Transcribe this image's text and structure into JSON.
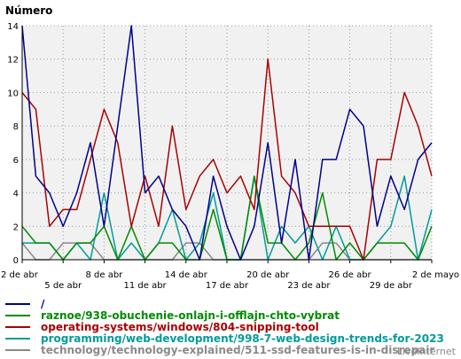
{
  "chart_data": {
    "type": "line",
    "title": "",
    "ylabel": "Número",
    "xlabel": "",
    "ylim": [
      0,
      14
    ],
    "yticks": [
      0,
      2,
      4,
      6,
      8,
      10,
      12,
      14
    ],
    "grid": true,
    "x_count": 31,
    "xtick_labels_row1": [
      {
        "i": 0,
        "label": "2 de abr"
      },
      {
        "i": 6,
        "label": "8 de abr"
      },
      {
        "i": 12,
        "label": "14 de abr"
      },
      {
        "i": 18,
        "label": "20 de abr"
      },
      {
        "i": 24,
        "label": "26 de abr"
      },
      {
        "i": 30,
        "label": "2 de mayo"
      }
    ],
    "xtick_labels_row2": [
      {
        "i": 3,
        "label": "5 de abr"
      },
      {
        "i": 9,
        "label": "11 de abr"
      },
      {
        "i": 15,
        "label": "17 de abr"
      },
      {
        "i": 21,
        "label": "23 de abr"
      },
      {
        "i": 27,
        "label": "29 de abr"
      }
    ],
    "series": [
      {
        "name": "/",
        "color": "#00008b",
        "values": [
          14,
          5,
          4,
          2,
          4,
          7,
          2,
          8,
          14,
          4,
          5,
          3,
          2,
          0,
          5,
          2,
          0,
          2,
          7,
          1,
          6,
          0,
          6,
          6,
          9,
          8,
          2,
          5,
          3,
          6,
          7
        ]
      },
      {
        "name": "raznoe/938-obuchenie-onlajn-i-offlajn-chto-vybrat",
        "color": "#008b00",
        "values": [
          2,
          1,
          1,
          0,
          1,
          1,
          2,
          0,
          2,
          0,
          1,
          1,
          0,
          0,
          3,
          0,
          0,
          5,
          1,
          1,
          0,
          1,
          4,
          0,
          1,
          0,
          1,
          1,
          1,
          0,
          2
        ]
      },
      {
        "name": "operating-systems/windows/804-snipping-tool",
        "color": "#aa0000",
        "values": [
          10,
          9,
          2,
          3,
          3,
          6,
          9,
          7,
          2,
          5,
          2,
          8,
          3,
          5,
          6,
          4,
          5,
          3,
          12,
          5,
          4,
          2,
          2,
          2,
          2,
          0,
          6,
          6,
          10,
          8,
          5
        ]
      },
      {
        "name": "programming/web-development/998-7-web-design-trends-for-2023",
        "color": "#009b9b",
        "values": [
          1,
          1,
          1,
          0,
          1,
          0,
          4,
          0,
          1,
          0,
          1,
          3,
          0,
          1,
          4,
          0,
          0,
          5,
          0,
          2,
          1,
          2,
          0,
          2,
          0,
          0,
          1,
          2,
          5,
          0,
          3
        ]
      },
      {
        "name": "technology/technology-explained/511-ssd-features-is-in-disrepair",
        "color": "#8a8a8a",
        "values": [
          1,
          0,
          0,
          1,
          1,
          1,
          0,
          0,
          0,
          0,
          0,
          0,
          1,
          1,
          0,
          0,
          0,
          0,
          0,
          0,
          0,
          0,
          1,
          1,
          0,
          0,
          0,
          0,
          0,
          0,
          0
        ]
      }
    ]
  },
  "watermark": "LiveInternet"
}
